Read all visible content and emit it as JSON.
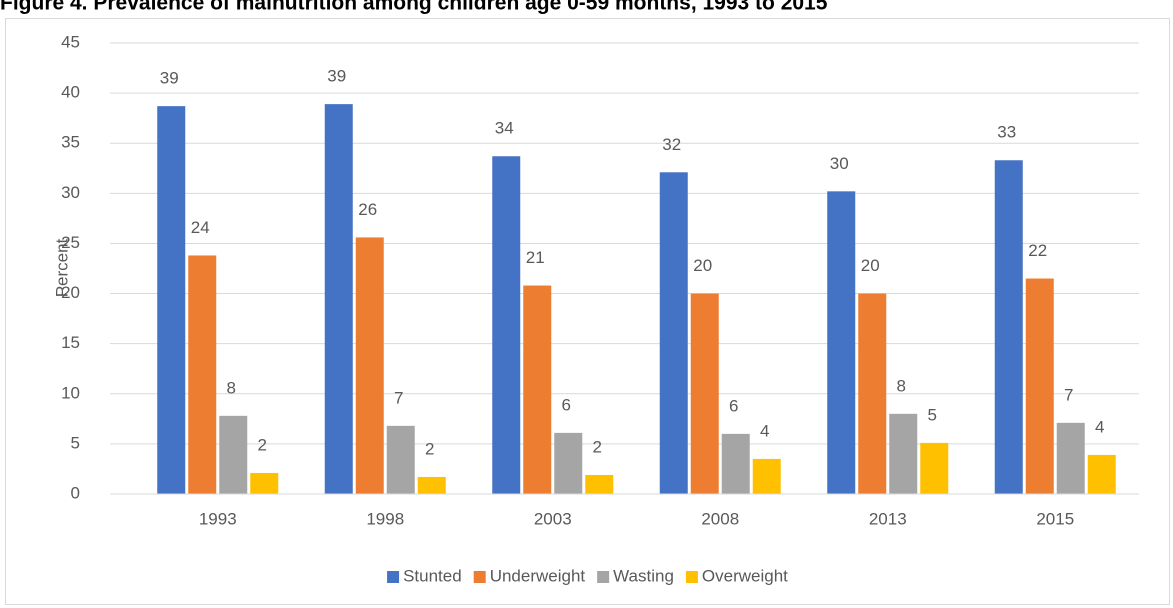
{
  "chart_data": {
    "type": "bar",
    "title": "Figure 4. Prevalence of malnutrition among children age 0-59 months, 1993 to 2015",
    "y_label": "Percent",
    "categories": [
      "1993",
      "1998",
      "2003",
      "2008",
      "2013",
      "2015"
    ],
    "series": [
      {
        "name": "Stunted",
        "color": "#4472c4",
        "values": [
          38.7,
          38.9,
          33.7,
          32.1,
          30.2,
          33.3
        ],
        "value_labels": [
          "39",
          "39",
          "34",
          "32",
          "30",
          "33"
        ]
      },
      {
        "name": "Underweight",
        "color": "#ed7d31",
        "values": [
          23.8,
          25.6,
          20.8,
          20.0,
          20.0,
          21.5
        ],
        "value_labels": [
          "24",
          "26",
          "21",
          "20",
          "20",
          "22"
        ]
      },
      {
        "name": "Wasting",
        "color": "#a5a5a5",
        "values": [
          7.8,
          6.8,
          6.1,
          6.0,
          8.0,
          7.1
        ],
        "value_labels": [
          "8",
          "7",
          "6",
          "6",
          "8",
          "7"
        ]
      },
      {
        "name": "Overweight",
        "color": "#ffc000",
        "values": [
          2.1,
          1.7,
          1.9,
          3.5,
          5.1,
          3.9
        ],
        "value_labels": [
          "2",
          "2",
          "2",
          "4",
          "5",
          "4"
        ]
      }
    ],
    "ylim": [
      0,
      45
    ],
    "yticks": [
      0,
      5,
      10,
      15,
      20,
      25,
      30,
      35,
      40,
      45
    ],
    "grid": true,
    "legend": "bottom"
  }
}
